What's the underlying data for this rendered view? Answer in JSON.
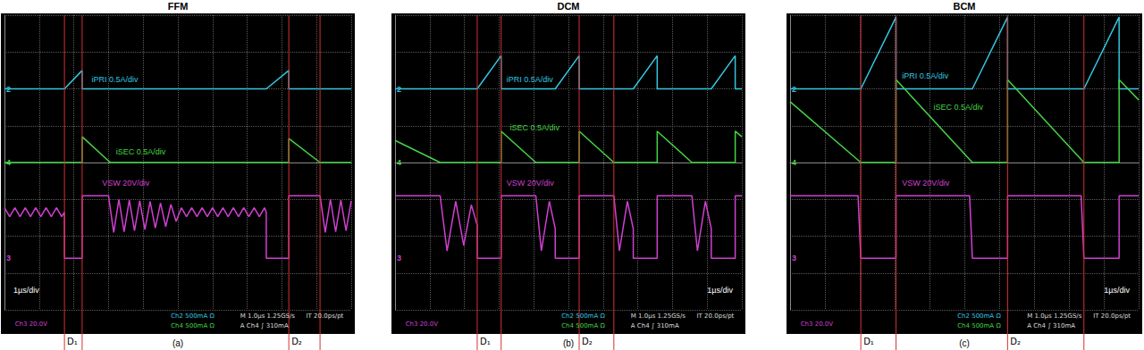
{
  "chart_data": [
    {
      "type": "line",
      "title": "FFM",
      "caption": "(a)",
      "xlim": [
        0,
        10
      ],
      "ylim": [
        -4,
        4
      ],
      "xticks": [
        0,
        1,
        2,
        3,
        4,
        5,
        6,
        7,
        8,
        9,
        10
      ],
      "yticks": [
        -4,
        -3,
        -2,
        -1,
        0,
        1,
        2,
        3,
        4
      ],
      "grid": true,
      "tick_labels": false,
      "timebase": "1µs/div",
      "status": [
        "Ch3 20.0V",
        "Ch2 500mA Ω",
        "Ch4 500mA Ω",
        "M 1.0µs 1.25GS/s",
        "A Ch4 ∫ 310mA",
        "IT 20.0ps/pt"
      ],
      "markers": [
        {
          "label": "D₁",
          "range": [
            1.73,
            2.24
          ]
        },
        {
          "label": "D₂",
          "range": [
            8.2,
            9.1
          ]
        }
      ],
      "series": [
        {
          "name": "iPRI 0.5A/div",
          "channel": "2",
          "color": "#33c7e0",
          "x": [
            0,
            1.73,
            2.24,
            2.24,
            7.55,
            8.2,
            8.2,
            10
          ],
          "values": [
            2.0,
            2.0,
            2.5,
            2.0,
            2.0,
            2.5,
            2.0,
            2.0
          ]
        },
        {
          "name": "iSEC 0.5A/div",
          "channel": "4",
          "color": "#44d444",
          "x": [
            0,
            2.24,
            2.24,
            3.05,
            8.2,
            8.2,
            9.1,
            10
          ],
          "values": [
            0,
            0,
            0.7,
            0,
            0,
            0.65,
            0,
            0
          ]
        },
        {
          "name": "VSW 20V/div",
          "channel": "3",
          "color": "#d040d0",
          "x": [
            0,
            0.15,
            0.3,
            0.45,
            0.6,
            0.75,
            0.9,
            1.05,
            1.2,
            1.35,
            1.5,
            1.65,
            1.73,
            1.73,
            2.24,
            2.24,
            3.0,
            3.15,
            3.3,
            3.45,
            3.6,
            3.75,
            3.9,
            4.05,
            4.2,
            4.35,
            4.5,
            4.65,
            4.8,
            4.95,
            5.1,
            5.25,
            5.4,
            5.55,
            5.7,
            5.85,
            6.0,
            6.15,
            6.3,
            6.45,
            6.6,
            6.75,
            6.9,
            7.05,
            7.2,
            7.35,
            7.5,
            7.55,
            7.55,
            8.2,
            8.2,
            9.1,
            9.25,
            9.4,
            9.55,
            9.7,
            9.85,
            10
          ],
          "values": [
            -1.23,
            -1.47,
            -1.23,
            -1.47,
            -1.23,
            -1.47,
            -1.23,
            -1.47,
            -1.23,
            -1.47,
            -1.23,
            -1.47,
            -1.35,
            -2.6,
            -2.6,
            -0.9,
            -0.9,
            -1.9,
            -1.0,
            -1.88,
            -1.02,
            -1.85,
            -1.04,
            -1.82,
            -1.06,
            -1.78,
            -1.1,
            -1.74,
            -1.14,
            -1.6,
            -1.23,
            -1.47,
            -1.23,
            -1.47,
            -1.23,
            -1.47,
            -1.23,
            -1.47,
            -1.23,
            -1.47,
            -1.23,
            -1.47,
            -1.23,
            -1.47,
            -1.23,
            -1.47,
            -1.23,
            -1.35,
            -2.6,
            -2.6,
            -0.9,
            -0.9,
            -1.9,
            -1.0,
            -1.88,
            -1.02,
            -1.85,
            -1.04
          ]
        }
      ]
    },
    {
      "type": "line",
      "title": "DCM",
      "caption": "(b)",
      "xlim": [
        0,
        10
      ],
      "ylim": [
        -4,
        4
      ],
      "xticks": [
        0,
        1,
        2,
        3,
        4,
        5,
        6,
        7,
        8,
        9,
        10
      ],
      "yticks": [
        -4,
        -3,
        -2,
        -1,
        0,
        1,
        2,
        3,
        4
      ],
      "grid": true,
      "tick_labels": false,
      "timebase": "1µs/div",
      "status": [
        "Ch3 20.0V",
        "Ch2 500mA Ω",
        "Ch4 500mA Ω",
        "M 1.0µs 1.25GS/s",
        "A Ch4 ∫ 310mA",
        "IT 20.0ps/pt"
      ],
      "markers": [
        {
          "label": "D₁",
          "range": [
            2.37,
            3.06
          ]
        },
        {
          "label": "D₂",
          "range": [
            5.31,
            6.31
          ]
        }
      ],
      "series": [
        {
          "name": "iPRI 0.5A/div",
          "channel": "2",
          "color": "#33c7e0",
          "x": [
            0,
            2.37,
            3.06,
            3.06,
            4.62,
            5.31,
            5.31,
            6.87,
            7.56,
            7.56,
            9.12,
            9.81,
            9.81,
            10
          ],
          "values": [
            2.0,
            2.0,
            2.9,
            2.0,
            2.0,
            2.9,
            2.0,
            2.0,
            2.9,
            2.0,
            2.0,
            2.9,
            2.0,
            2.0
          ]
        },
        {
          "name": "iSEC 0.5A/div",
          "channel": "4",
          "color": "#44d444",
          "x": [
            0,
            1.3,
            3.06,
            3.06,
            4.06,
            5.31,
            5.31,
            6.31,
            7.56,
            7.56,
            8.56,
            9.81,
            9.81,
            10
          ],
          "values": [
            0.6,
            0,
            0,
            0.85,
            0,
            0,
            0.85,
            0,
            0,
            0.85,
            0,
            0,
            0.85,
            0.7
          ]
        },
        {
          "name": "VSW 20V/div",
          "channel": "3",
          "color": "#d040d0",
          "x": [
            0,
            1.3,
            1.5,
            1.75,
            1.98,
            2.2,
            2.37,
            2.37,
            3.06,
            3.06,
            4.06,
            4.22,
            4.45,
            4.62,
            4.62,
            5.31,
            5.31,
            6.31,
            6.47,
            6.7,
            6.87,
            6.87,
            7.56,
            7.56,
            8.56,
            8.72,
            8.95,
            9.12,
            9.12,
            9.81,
            9.81,
            10
          ],
          "values": [
            -0.9,
            -0.9,
            -2.4,
            -1.05,
            -2.25,
            -1.15,
            -1.7,
            -2.6,
            -2.6,
            -0.9,
            -0.9,
            -2.4,
            -1.05,
            -1.8,
            -2.6,
            -2.6,
            -0.9,
            -0.9,
            -2.4,
            -1.05,
            -1.8,
            -2.6,
            -2.6,
            -0.9,
            -0.9,
            -2.4,
            -1.05,
            -1.8,
            -2.6,
            -2.6,
            -0.9,
            -0.9
          ]
        }
      ]
    },
    {
      "type": "line",
      "title": "BCM",
      "caption": "(c)",
      "xlim": [
        0,
        10
      ],
      "ylim": [
        -4,
        4
      ],
      "xticks": [
        0,
        1,
        2,
        3,
        4,
        5,
        6,
        7,
        8,
        9,
        10
      ],
      "yticks": [
        -4,
        -3,
        -2,
        -1,
        0,
        1,
        2,
        3,
        4
      ],
      "grid": true,
      "tick_labels": false,
      "timebase": "1µs/div",
      "status": [
        "Ch3 20.0V",
        "Ch2 500mA Ω",
        "Ch4 500mA Ω",
        "M 1.0µs 1.25GS/s",
        "A Ch4 ∫ 310mA",
        "IT 20.0ps/pt"
      ],
      "markers": [
        {
          "label": "D₁",
          "range": [
            2.03,
            3.04
          ]
        },
        {
          "label": "D₂",
          "range": [
            6.24,
            8.43
          ]
        }
      ],
      "series": [
        {
          "name": "iPRI 0.5A/div",
          "channel": "2",
          "color": "#33c7e0",
          "x": [
            0,
            2.03,
            3.04,
            3.04,
            5.23,
            6.24,
            6.24,
            8.43,
            9.44,
            9.44,
            10
          ],
          "values": [
            2.0,
            2.0,
            3.95,
            2.0,
            2.0,
            3.95,
            2.0,
            2.0,
            3.95,
            2.0,
            2.0
          ]
        },
        {
          "name": "iSEC 0.5A/div",
          "channel": "4",
          "color": "#44d444",
          "x": [
            0,
            2.03,
            3.04,
            3.04,
            5.23,
            6.24,
            6.24,
            8.43,
            9.44,
            9.44,
            10
          ],
          "values": [
            1.65,
            0,
            0,
            2.25,
            0,
            0,
            2.25,
            0,
            0,
            2.25,
            1.7
          ]
        },
        {
          "name": "VSW 20V/div",
          "channel": "3",
          "color": "#d040d0",
          "x": [
            0,
            1.95,
            2.03,
            3.04,
            3.04,
            5.15,
            5.23,
            6.24,
            6.24,
            8.35,
            8.43,
            9.44,
            9.44,
            10
          ],
          "values": [
            -0.9,
            -0.9,
            -2.6,
            -2.6,
            -0.9,
            -0.9,
            -2.6,
            -2.6,
            -0.9,
            -0.9,
            -2.6,
            -2.6,
            -0.9,
            -0.9
          ]
        }
      ]
    }
  ]
}
